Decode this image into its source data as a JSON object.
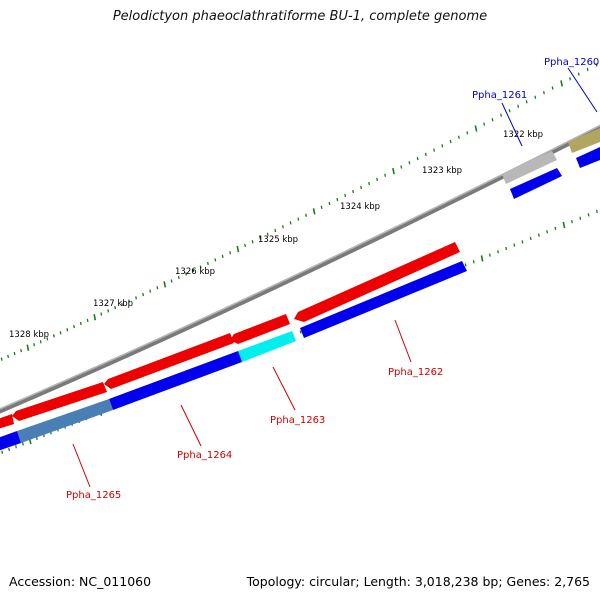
{
  "title": "Pelodictyon phaeoclathratiforme BU-1, complete genome",
  "footer": {
    "accession": "Accession: NC_011060",
    "stats": "Topology: circular; Length: 3,018,238 bp; Genes: 2,765"
  },
  "scale_ticks": [
    {
      "label": "1322 kbp"
    },
    {
      "label": "1323 kbp"
    },
    {
      "label": "1324 kbp"
    },
    {
      "label": "1325 kbp"
    },
    {
      "label": "1326 kbp"
    },
    {
      "label": "1327 kbp"
    },
    {
      "label": "1328 kbp"
    }
  ],
  "gene_labels": [
    {
      "name": "Ppha_1260",
      "strand": "forward"
    },
    {
      "name": "Ppha_1261",
      "strand": "forward"
    },
    {
      "name": "Ppha_1262",
      "strand": "reverse"
    },
    {
      "name": "Ppha_1263",
      "strand": "reverse"
    },
    {
      "name": "Ppha_1264",
      "strand": "reverse"
    },
    {
      "name": "Ppha_1265",
      "strand": "reverse"
    }
  ],
  "colors": {
    "forward_label": "#0000cc",
    "reverse_label": "#cc0000",
    "backbone": "#808080",
    "tick": "#1a7a1a",
    "red_feature": "#ee0000",
    "blue_feature": "#0000ee",
    "gray_feature": "#b8b8b8",
    "olive_feature": "#b0a660",
    "cyan_feature": "#00eeee",
    "steel_feature": "#4a7fb5"
  }
}
